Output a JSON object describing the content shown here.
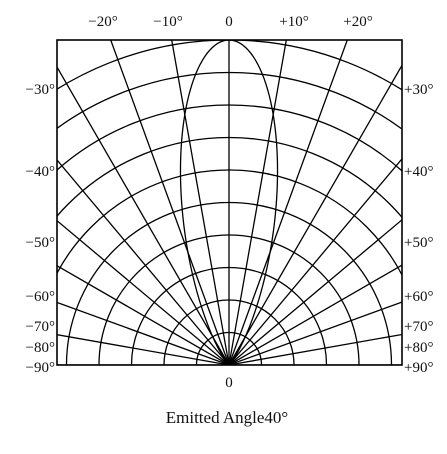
{
  "chart_data": {
    "type": "polar",
    "caption": "Emitted Angle40°",
    "top_ticks": [
      "−20°",
      "−10°",
      "0",
      "+10°",
      "+20°"
    ],
    "bottom_tick": "0",
    "left_ticks": [
      "−30°",
      "−40°",
      "−50°",
      "−60°",
      "−70°",
      "−80°",
      "−90°"
    ],
    "right_ticks": [
      "+30°",
      "+40°",
      "+50°",
      "+60°",
      "+70°",
      "+80°",
      "+90°"
    ],
    "angle_ticks_deg": [
      -90,
      -80,
      -70,
      -60,
      -50,
      -40,
      -30,
      -20,
      -10,
      0,
      10,
      20,
      30,
      40,
      50,
      60,
      70,
      80,
      90
    ],
    "radial_rings": [
      0.1,
      0.2,
      0.3,
      0.4,
      0.5,
      0.6,
      0.7,
      0.8,
      0.9,
      1.0
    ],
    "series": [
      {
        "type": "cos_power",
        "exponent": 16,
        "full_width_angle_deg": 40,
        "peak": 1.0
      }
    ]
  }
}
